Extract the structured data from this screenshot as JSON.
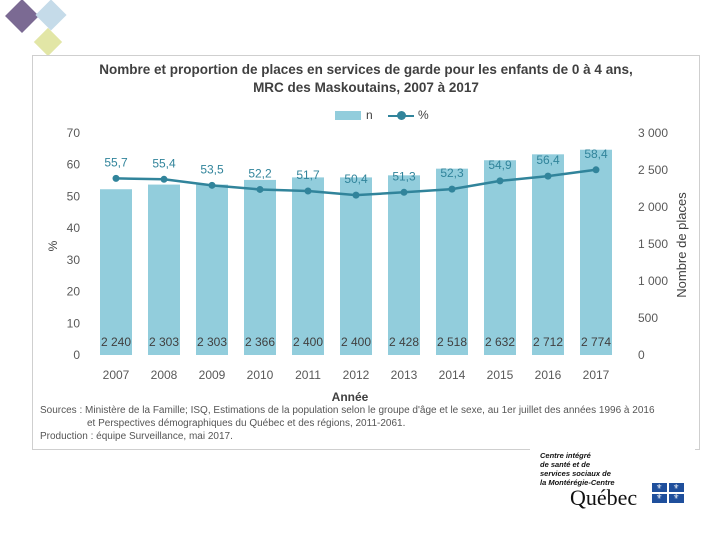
{
  "chart_data": {
    "type": "bar+line",
    "title_line1": "Nombre et proportion de places en services de garde pour les enfants de 0 à 4 ans,",
    "title_line2": "MRC des Maskoutains, 2007 à 2017",
    "legend": {
      "bar": "n",
      "line": "%"
    },
    "xlabel": "Année",
    "ylabel_left": "%",
    "ylabel_right": "Nombre de places",
    "categories": [
      "2007",
      "2008",
      "2009",
      "2010",
      "2011",
      "2012",
      "2013",
      "2014",
      "2015",
      "2016",
      "2017"
    ],
    "left_axis": {
      "min": 0,
      "max": 70,
      "ticks": [
        "0",
        "10",
        "20",
        "30",
        "40",
        "50",
        "60",
        "70"
      ]
    },
    "right_axis": {
      "min": 0,
      "max": 3000,
      "ticks": [
        "0",
        "500",
        "1 000",
        "1 500",
        "2 000",
        "2 500",
        "3 000"
      ]
    },
    "series": [
      {
        "name": "n",
        "type": "bar",
        "axis": "right",
        "values": [
          2240,
          2303,
          2303,
          2366,
          2400,
          2400,
          2428,
          2518,
          2632,
          2712,
          2774
        ],
        "labels": [
          "2 240",
          "2 303",
          "2 303",
          "2 366",
          "2 400",
          "2 400",
          "2 428",
          "2 518",
          "2 632",
          "2 712",
          "2 774"
        ]
      },
      {
        "name": "%",
        "type": "line",
        "axis": "left",
        "values": [
          55.7,
          55.4,
          53.5,
          52.2,
          51.7,
          50.4,
          51.3,
          52.3,
          54.9,
          56.4,
          58.4
        ],
        "labels": [
          "55,7",
          "55,4",
          "53,5",
          "52,2",
          "51,7",
          "50,4",
          "51,3",
          "52,3",
          "54,9",
          "56,4",
          "58,4"
        ]
      }
    ],
    "colors": {
      "bar": "#92cddc",
      "line": "#31849b",
      "axis_text": "#595959",
      "bar_label": "#404040"
    }
  },
  "source": {
    "line1": "Sources : Ministère de la Famille; ISQ, Estimations de la population selon le groupe d'âge et le sexe, au 1er juillet des années 1996 à 2016",
    "line2": "et Perspectives démographiques du Québec et des régions, 2011-2061.",
    "line3": "Production : équipe Surveillance, mai 2017."
  },
  "logo": {
    "line1": "Centre intégré",
    "line2": "de santé et de",
    "line3": "services sociaux de",
    "line4": "la Montérégie-Centre",
    "wordmark": "Québec"
  },
  "decor_colors": {
    "purple": "#7b6a93",
    "blue": "#c5dbe9",
    "lime": "#e2e6a6"
  }
}
